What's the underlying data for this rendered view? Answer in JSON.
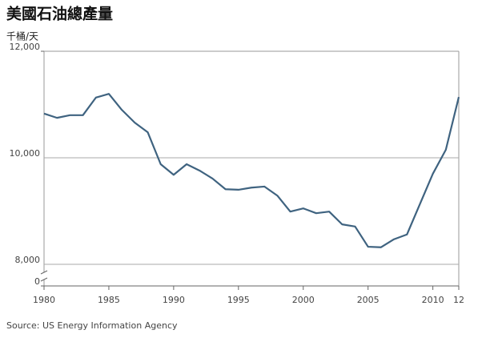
{
  "chart_data": {
    "type": "line",
    "title": "美國石油總產量",
    "y_label": "千桶/天",
    "source": "Source: US Energy Information Agency",
    "x": [
      1980,
      1981,
      1982,
      1983,
      1984,
      1985,
      1986,
      1987,
      1988,
      1989,
      1990,
      1991,
      1992,
      1993,
      1994,
      1995,
      1996,
      1997,
      1998,
      1999,
      2000,
      2001,
      2002,
      2003,
      2004,
      2005,
      2006,
      2007,
      2008,
      2009,
      2010,
      2011,
      2012
    ],
    "series": [
      {
        "name": "美國石油總產量",
        "color": "#3f6380",
        "values": [
          10830,
          10750,
          10800,
          10800,
          11130,
          11200,
          10900,
          10660,
          10480,
          9880,
          9680,
          9880,
          9760,
          9610,
          9410,
          9400,
          9440,
          9460,
          9290,
          8990,
          9050,
          8960,
          8990,
          8750,
          8710,
          8330,
          8320,
          8470,
          8560,
          9130,
          9700,
          10150,
          11140
        ]
      }
    ],
    "xlim": [
      1980,
      2012
    ],
    "xticks": [
      1980,
      1985,
      1990,
      1995,
      2000,
      2005,
      2010,
      {
        "value": 2012,
        "label": "12"
      }
    ],
    "ylim": [
      8000,
      12000
    ],
    "yticks": [
      {
        "value": 0,
        "label": "0"
      },
      {
        "value": 8000,
        "label": "8,000"
      },
      {
        "value": 10000,
        "label": "10,000"
      },
      {
        "value": 12000,
        "label": "12,000"
      }
    ],
    "axis_break": true,
    "grid": true
  }
}
